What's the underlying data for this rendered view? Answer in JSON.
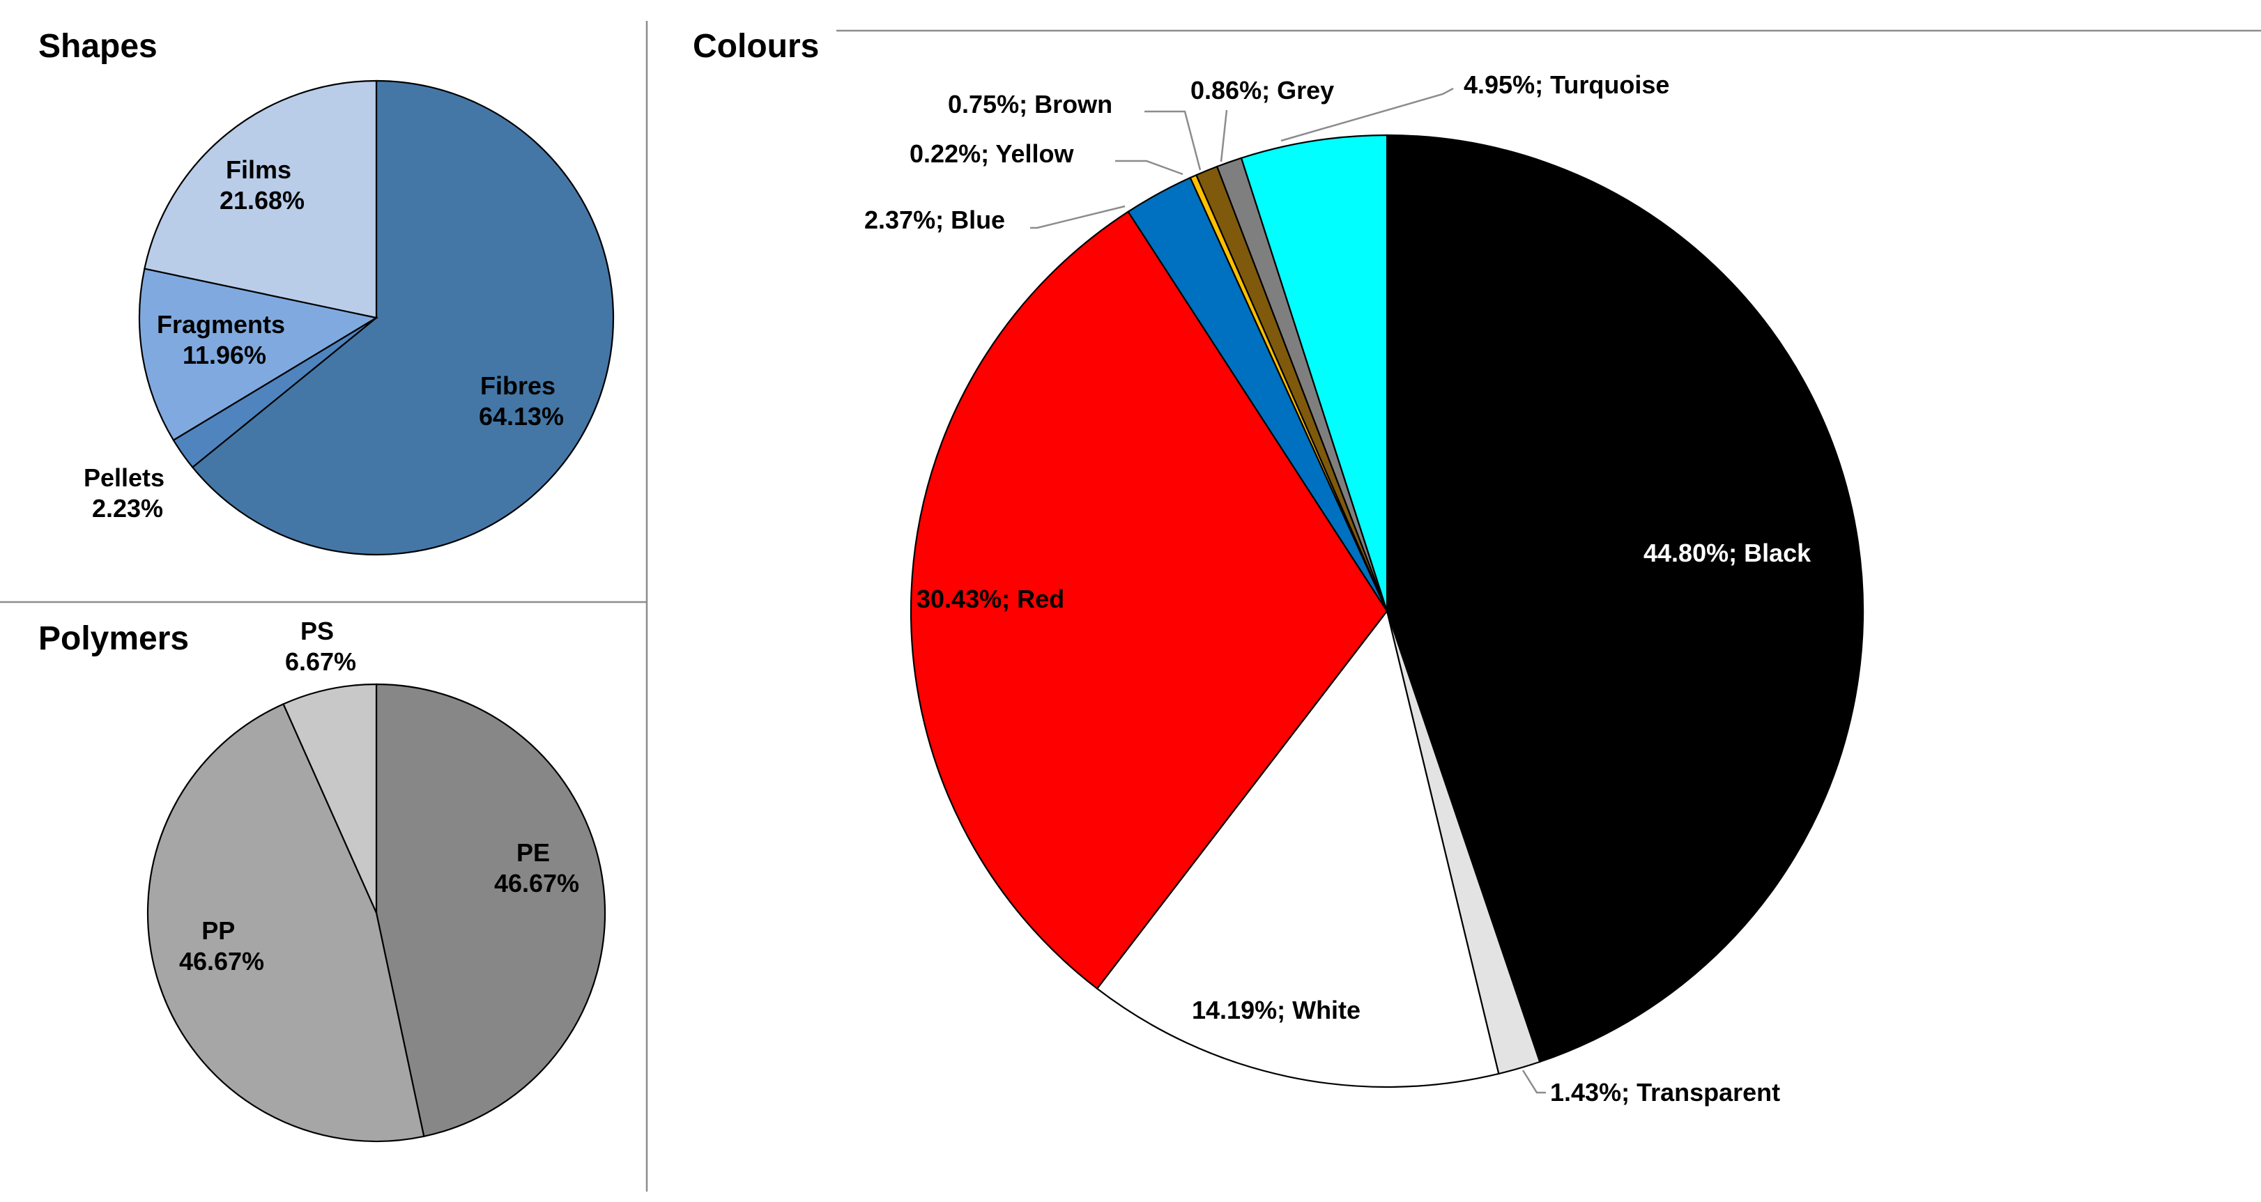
{
  "chart_data": [
    {
      "type": "pie",
      "title": "Shapes",
      "slices": [
        {
          "label": "Fibres",
          "pct": "64.13%",
          "value": 64.13,
          "color": "#4477a6"
        },
        {
          "label": "Pellets",
          "pct": "2.23%",
          "value": 2.23,
          "color": "#4f84bf"
        },
        {
          "label": "Fragments",
          "pct": "11.96%",
          "value": 11.96,
          "color": "#80aadf"
        },
        {
          "label": "Films",
          "pct": "21.68%",
          "value": 21.68,
          "color": "#b9cde9"
        }
      ]
    },
    {
      "type": "pie",
      "title": "Polymers",
      "slices": [
        {
          "label": "PE",
          "pct": "46.67%",
          "value": 46.67,
          "color": "#878787"
        },
        {
          "label": "PP",
          "pct": "46.67%",
          "value": 46.67,
          "color": "#a6a6a6"
        },
        {
          "label": "PS",
          "pct": "6.67%",
          "value": 6.67,
          "color": "#c8c8c8"
        }
      ]
    },
    {
      "type": "pie",
      "title": "Colours",
      "slices": [
        {
          "label": "44.80%; Black",
          "value": 44.8,
          "color": "#000000"
        },
        {
          "label": "1.43%; Transparent",
          "value": 1.43,
          "color": "#e3e3e3"
        },
        {
          "label": "14.19%; White",
          "value": 14.19,
          "color": "#ffffff"
        },
        {
          "label": "30.43%; Red",
          "value": 30.43,
          "color": "#ff0000"
        },
        {
          "label": "2.37%; Blue",
          "value": 2.37,
          "color": "#0070c0"
        },
        {
          "label": "0.22%; Yellow",
          "value": 0.22,
          "color": "#ffc000"
        },
        {
          "label": "0.75%; Brown",
          "value": 0.75,
          "color": "#7f5a0c"
        },
        {
          "label": "0.86%; Grey",
          "value": 0.86,
          "color": "#7f7f7f"
        },
        {
          "label": "4.95%; Turquoise",
          "value": 4.95,
          "color": "#00ffff"
        }
      ]
    }
  ]
}
